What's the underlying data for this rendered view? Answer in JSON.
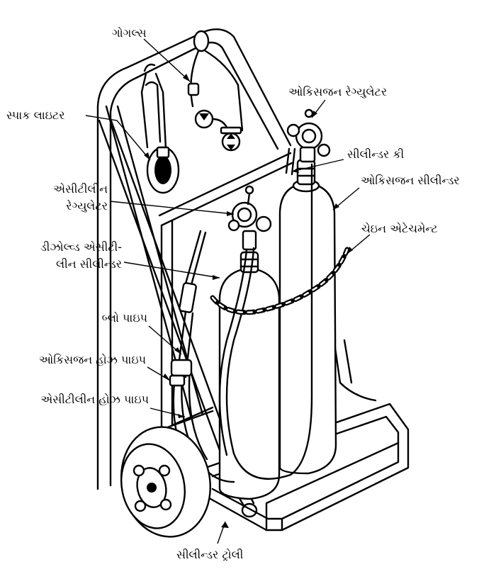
{
  "labels": {
    "goggles": "ગોગલ્સ",
    "spark_lighter": "સ્પાક લાઇટર",
    "oxygen_regulator": "ઓકિસજન રેગ્યુલેટર",
    "cylinder_key": "સીલીન્ડર કી",
    "oxygen_cylinder": "ઓકિસજન સીલીન્ડર",
    "acetylene_regulator_1": "એસીટીલીન",
    "acetylene_regulator_2": "રેગ્યુલેટર",
    "chain_attachment": "ચેઇન એટેચમેન્ટ",
    "dissolved_acetylene_1": "ડીઝોલ્વ્ડ એસીટી-",
    "dissolved_acetylene_2": "લીન સીલીન્ડર",
    "blow_pipe": "બ્લો પાઇપ",
    "oxygen_hose": "ઓકિસજન હોઝ પાઇપ",
    "acetylene_hose": "એસીટીલીન હોઝ પાઇપ",
    "trolley": "સીલીન્ડર ટ્રોલી"
  }
}
